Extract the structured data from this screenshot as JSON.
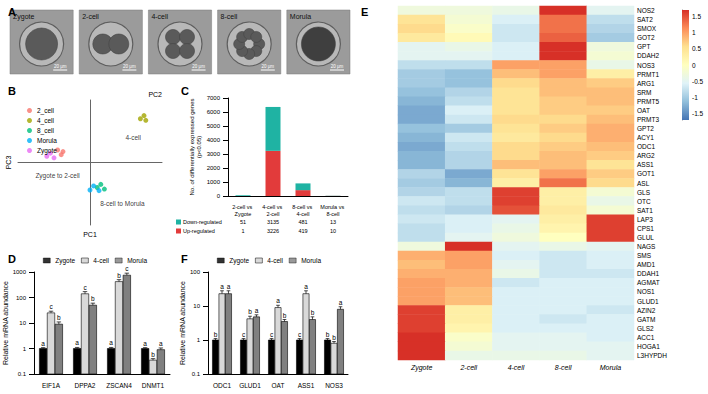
{
  "chart_data": [
    {
      "type": "image",
      "title": "A",
      "labels": [
        "Zygote",
        "2-cell",
        "4-cell",
        "8-cell",
        "Morula"
      ],
      "scale_label": "20 μm"
    },
    {
      "type": "scatter",
      "title": "B",
      "x_label": "PC1",
      "y_label": "PC3",
      "z_label": "PC2",
      "xlim": [
        -20,
        20
      ],
      "ylim": [
        -20,
        20
      ],
      "tick_labels": false,
      "legend": "top-left",
      "series": [
        {
          "name": "2_cell",
          "color": "#F8766D",
          "x": [
            -9,
            -8,
            -7.5
          ],
          "values": [
            4,
            2.5,
            3.5
          ]
        },
        {
          "name": "4_cell",
          "color": "#A3A500",
          "x": [
            14,
            15,
            15.5
          ],
          "values": [
            14,
            15,
            13.5
          ]
        },
        {
          "name": "8_cell",
          "color": "#00BF7D",
          "x": [
            2,
            3,
            4
          ],
          "values": [
            -8,
            -7,
            -8.5
          ]
        },
        {
          "name": "Morula",
          "color": "#00B0F6",
          "x": [
            1,
            2.5,
            0
          ],
          "values": [
            -7.5,
            -9,
            -8.8
          ]
        },
        {
          "name": "Zygote",
          "color": "#E76BF3",
          "x": [
            -12,
            -11,
            -10
          ],
          "values": [
            2,
            3,
            1.5
          ]
        }
      ],
      "annotations": [
        {
          "text": "Zygote to 2-cell",
          "x": -9,
          "y": -4
        },
        {
          "text": "8-cell to Morula",
          "x": 9,
          "y": -13
        },
        {
          "text": "4-cell",
          "x": 12,
          "y": 8
        }
      ]
    },
    {
      "type": "bar",
      "title": "C",
      "stacked": true,
      "y_label": "No. of differentially expressed genes\n(p<0.05)",
      "categories": [
        "2-cell vs Zygote",
        "4-cell vs 2-cell",
        "8-cell vs 4-cell",
        "Morula vs 8-cell"
      ],
      "series": [
        {
          "name": "Down-regulated",
          "color": "#1fb3a3",
          "values": [
            51,
            3135,
            481,
            13
          ]
        },
        {
          "name": "Up-regulated",
          "color": "#e23b3b",
          "values": [
            1,
            3226,
            419,
            10
          ]
        }
      ],
      "ylim": [
        0,
        7000
      ],
      "yticks": [
        0,
        1000,
        2000,
        3000,
        4000,
        5000,
        6000,
        7000
      ]
    },
    {
      "type": "bar",
      "title": "D",
      "y_label": "Relative mRNA abundance",
      "log": "y",
      "legend": "top",
      "categories": [
        "EIF1A",
        "DPPA2",
        "ZSCAN4",
        "DNMT1"
      ],
      "series": [
        {
          "name": "Zygote",
          "color": "#000000",
          "values": [
            1,
            1,
            1,
            1
          ],
          "errors": [
            0.08,
            0.1,
            0.1,
            0.08
          ],
          "letters": [
            "a",
            "a",
            "a",
            "a"
          ]
        },
        {
          "name": "4-cell",
          "color": "#d9d9d9",
          "values": [
            25,
            140,
            420,
            0.35
          ],
          "errors": [
            4,
            30,
            80,
            0.05
          ],
          "letters": [
            "c",
            "c",
            "b",
            "b"
          ]
        },
        {
          "name": "Morula",
          "color": "#808080",
          "values": [
            9,
            50,
            750,
            0.9
          ],
          "errors": [
            2,
            10,
            150,
            0.15
          ],
          "letters": [
            "b",
            "b",
            "c",
            "a"
          ]
        }
      ],
      "ylim": [
        0.1,
        1000
      ],
      "yticks": [
        0.1,
        1,
        10,
        100,
        1000
      ]
    },
    {
      "type": "heatmap",
      "title": "E",
      "columns": [
        "Zygote",
        "2-cell",
        "4-cell",
        "8-cell",
        "Morula"
      ],
      "rows": [
        "NOS2",
        "SAT2",
        "SMOX",
        "GOT2",
        "GPT",
        "DDAH2",
        "NOS3",
        "PRMT1",
        "ARG1",
        "SRM",
        "PRMT5",
        "OAT",
        "PRMT3",
        "GPT2",
        "ACY1",
        "ODC1",
        "ARG2",
        "ASS1",
        "GOT1",
        "ASL",
        "GLS",
        "OTC",
        "SAT1",
        "LAP3",
        "CPS1",
        "GLUL",
        "NAGS",
        "SMS",
        "AMD1",
        "DDAH1",
        "AGMAT",
        "NOS1",
        "GLUD1",
        "AZIN2",
        "GATM",
        "GLS2",
        "ACC1",
        "HOGA1",
        "L3HYPDH"
      ],
      "cells": [
        [
          -0.3,
          -0.3,
          -0.4,
          1.7,
          -0.5
        ],
        [
          0.5,
          -0.2,
          -0.6,
          1.3,
          -0.8
        ],
        [
          0.6,
          -0.1,
          -0.7,
          1.3,
          -0.9
        ],
        [
          0.4,
          0.1,
          -0.7,
          1.4,
          -1.0
        ],
        [
          -0.5,
          -0.4,
          -0.6,
          1.7,
          -0.3
        ],
        [
          -0.5,
          -0.5,
          -0.6,
          1.7,
          -0.2
        ],
        [
          -0.8,
          -0.8,
          1.0,
          1.0,
          -0.4
        ],
        [
          -1.0,
          -1.1,
          0.8,
          1.0,
          0.3
        ],
        [
          -1.0,
          -1.1,
          0.6,
          0.8,
          0.7
        ],
        [
          -1.1,
          -0.9,
          0.5,
          0.8,
          0.8
        ],
        [
          -1.2,
          -0.8,
          0.5,
          0.7,
          0.8
        ],
        [
          -1.3,
          -0.6,
          0.5,
          0.7,
          0.7
        ],
        [
          -1.3,
          -0.7,
          0.6,
          0.6,
          0.8
        ],
        [
          -1.1,
          -1.0,
          0.5,
          0.7,
          0.9
        ],
        [
          -1.2,
          -0.7,
          0.4,
          0.6,
          0.9
        ],
        [
          -1.3,
          -0.8,
          0.6,
          0.7,
          0.8
        ],
        [
          -1.2,
          -0.9,
          0.6,
          0.8,
          0.7
        ],
        [
          -1.2,
          -0.9,
          0.8,
          0.8,
          0.5
        ],
        [
          -0.9,
          -1.3,
          0.5,
          1.0,
          0.7
        ],
        [
          -1.0,
          -1.2,
          0.3,
          1.3,
          0.6
        ],
        [
          -0.9,
          -0.8,
          1.6,
          0.3,
          -0.2
        ],
        [
          -0.7,
          -0.8,
          1.6,
          0.3,
          -0.4
        ],
        [
          -0.8,
          -0.9,
          1.5,
          0.4,
          -0.2
        ],
        [
          -0.7,
          -0.6,
          -0.5,
          0.3,
          1.6
        ],
        [
          -0.8,
          -0.6,
          -0.4,
          0.2,
          1.6
        ],
        [
          -0.8,
          -0.5,
          -0.3,
          0.0,
          1.6
        ],
        [
          -0.3,
          1.7,
          -0.5,
          -0.4,
          -0.5
        ],
        [
          0.9,
          1.0,
          -0.6,
          -0.7,
          -0.6
        ],
        [
          0.8,
          1.0,
          -0.5,
          -0.7,
          -0.6
        ],
        [
          0.9,
          0.9,
          -0.4,
          -0.7,
          -0.7
        ],
        [
          1.0,
          0.9,
          -0.7,
          -0.6,
          -0.6
        ],
        [
          1.0,
          0.8,
          -0.6,
          -0.6,
          -0.6
        ],
        [
          1.0,
          0.8,
          -0.6,
          -0.6,
          -0.6
        ],
        [
          1.6,
          0.3,
          -0.6,
          -0.6,
          -0.7
        ],
        [
          1.6,
          0.3,
          -0.6,
          -0.7,
          -0.6
        ],
        [
          1.6,
          0.2,
          -0.6,
          -0.6,
          -0.6
        ],
        [
          1.7,
          -0.1,
          -0.5,
          -0.5,
          -0.6
        ],
        [
          1.7,
          -0.2,
          -0.5,
          -0.5,
          -0.5
        ],
        [
          1.7,
          -0.4,
          -0.4,
          -0.4,
          -0.5
        ]
      ],
      "colorbar": {
        "range": [
          -1.7,
          1.7
        ],
        "ticks": [
          -1.5,
          -1,
          -0.5,
          0,
          0.5,
          1,
          1.5
        ]
      }
    },
    {
      "type": "bar",
      "title": "F",
      "y_label": "Relative mRNA abundance",
      "log": "y",
      "legend": "top",
      "categories": [
        "ODC1",
        "GLUD1",
        "OAT",
        "ASS1",
        "NOS3"
      ],
      "series": [
        {
          "name": "Zygote",
          "color": "#000000",
          "values": [
            1,
            1,
            1,
            1,
            1
          ],
          "errors": [
            0.1,
            0.1,
            0.1,
            0.1,
            0.1
          ],
          "letters": [
            "b",
            "c",
            "c",
            "c",
            "b"
          ]
        },
        {
          "name": "4-cell",
          "color": "#d9d9d9",
          "values": [
            23,
            4.2,
            9,
            23,
            0.8
          ],
          "errors": [
            5,
            0.8,
            1.5,
            5,
            0.1
          ],
          "letters": [
            "a",
            "b",
            "a",
            "a",
            "b"
          ]
        },
        {
          "name": "Morula",
          "color": "#808080",
          "values": [
            23,
            4.8,
            3.5,
            4,
            8
          ],
          "errors": [
            5,
            0.7,
            0.5,
            0.8,
            1.5
          ],
          "letters": [
            "a",
            "a",
            "b",
            "b",
            "a"
          ]
        }
      ],
      "ylim": [
        0.1,
        100
      ],
      "yticks": [
        0.1,
        1,
        10,
        100
      ]
    }
  ]
}
